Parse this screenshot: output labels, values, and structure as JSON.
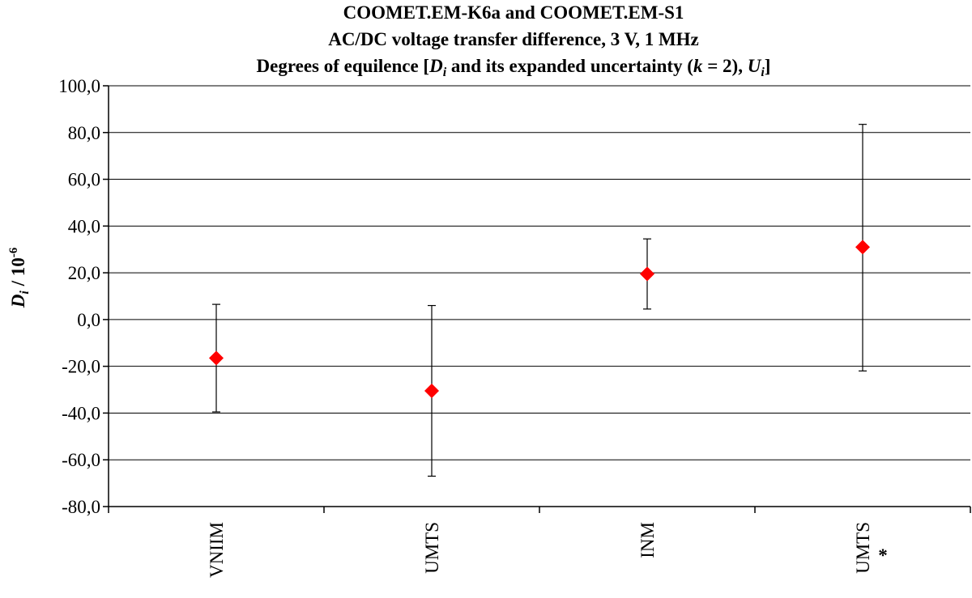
{
  "chart_data": {
    "type": "scatter",
    "title_lines": [
      "COOMET.EM-K6a and COOMET.EM-S1",
      "AC/DC voltage transfer difference, 3 V, 1 MHz"
    ],
    "title_line3": {
      "prefix": "Degrees of equilence [",
      "di_main": "D",
      "di_sub": "i",
      "mid": " and its expanded uncertainty (",
      "k": "k",
      "k_eq": " = 2), ",
      "ui_main": "U",
      "ui_sub": "i",
      "suffix": "]"
    },
    "ylabel": {
      "main": "D",
      "sub": "i",
      "mid": " / 10",
      "sup": "-6"
    },
    "ylim": [
      -80,
      100
    ],
    "yticks": [
      -80,
      -60,
      -40,
      -20,
      0,
      20,
      40,
      60,
      80,
      100
    ],
    "ytick_labels": [
      "-80,0",
      "-60,0",
      "-40,0",
      "-20,0",
      "0,0",
      "20,0",
      "40,0",
      "60,0",
      "80,0",
      "100,0"
    ],
    "grid": true,
    "categories": [
      "VNIIM",
      "UMTS",
      "INM",
      "UMTS"
    ],
    "category_marks": [
      "",
      "",
      "",
      "*"
    ],
    "values": [
      -16.5,
      -30.5,
      19.5,
      31.0
    ],
    "upper": [
      6.5,
      6.0,
      34.5,
      83.5
    ],
    "lower": [
      -39.5,
      -67.0,
      4.5,
      -22.0
    ],
    "marker_color": "#ff0000"
  }
}
